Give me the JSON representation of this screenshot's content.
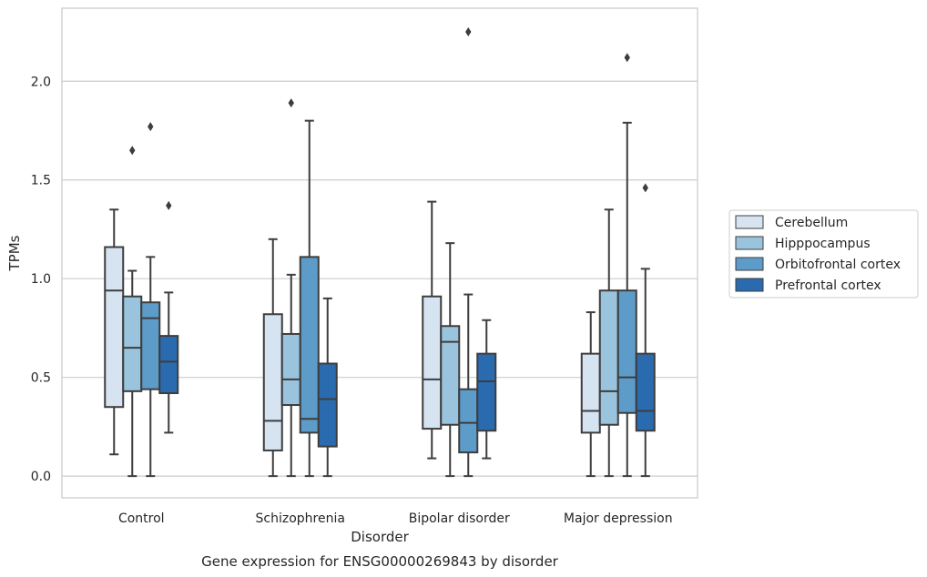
{
  "chart_data": {
    "type": "box",
    "title": "",
    "caption": "Gene expression for ENSG00000269843 by disorder",
    "xlabel": "Disorder",
    "ylabel": "TPMs",
    "ylim": [
      -0.11,
      2.37
    ],
    "yticks": [
      0.0,
      0.5,
      1.0,
      1.5,
      2.0
    ],
    "ytick_labels": [
      "0.0",
      "0.5",
      "1.0",
      "1.5",
      "2.0"
    ],
    "grid": "horizontal",
    "legend_position": "right",
    "categories": [
      "Control",
      "Schizophrenia",
      "Bipolar disorder",
      "Major depression"
    ],
    "series": [
      {
        "name": "Cerebellum",
        "color": "#d6e4f2",
        "boxes": [
          {
            "whislo": 0.11,
            "q1": 0.35,
            "med": 0.94,
            "q3": 1.16,
            "whishi": 1.35,
            "fliers": []
          },
          {
            "whislo": 0.0,
            "q1": 0.13,
            "med": 0.28,
            "q3": 0.82,
            "whishi": 1.2,
            "fliers": []
          },
          {
            "whislo": 0.09,
            "q1": 0.24,
            "med": 0.49,
            "q3": 0.91,
            "whishi": 1.39,
            "fliers": []
          },
          {
            "whislo": 0.0,
            "q1": 0.22,
            "med": 0.33,
            "q3": 0.62,
            "whishi": 0.83,
            "fliers": []
          }
        ]
      },
      {
        "name": "Hipppocampus",
        "color": "#9ac4dd",
        "boxes": [
          {
            "whislo": 0.0,
            "q1": 0.43,
            "med": 0.65,
            "q3": 0.91,
            "whishi": 1.04,
            "fliers": [
              1.65
            ]
          },
          {
            "whislo": 0.0,
            "q1": 0.36,
            "med": 0.49,
            "q3": 0.72,
            "whishi": 1.02,
            "fliers": [
              1.89
            ]
          },
          {
            "whislo": 0.0,
            "q1": 0.26,
            "med": 0.68,
            "q3": 0.76,
            "whishi": 1.18,
            "fliers": []
          },
          {
            "whislo": 0.0,
            "q1": 0.26,
            "med": 0.43,
            "q3": 0.94,
            "whishi": 1.35,
            "fliers": []
          }
        ]
      },
      {
        "name": "Orbitofrontal cortex",
        "color": "#5d9cc9",
        "boxes": [
          {
            "whislo": 0.0,
            "q1": 0.44,
            "med": 0.8,
            "q3": 0.88,
            "whishi": 1.11,
            "fliers": [
              1.77
            ]
          },
          {
            "whislo": 0.0,
            "q1": 0.22,
            "med": 0.29,
            "q3": 1.11,
            "whishi": 1.8,
            "fliers": []
          },
          {
            "whislo": 0.0,
            "q1": 0.12,
            "med": 0.27,
            "q3": 0.44,
            "whishi": 0.92,
            "fliers": [
              2.25
            ]
          },
          {
            "whislo": 0.0,
            "q1": 0.32,
            "med": 0.5,
            "q3": 0.94,
            "whishi": 1.79,
            "fliers": [
              2.12
            ]
          }
        ]
      },
      {
        "name": "Prefrontal cortex",
        "color": "#2a6bb0",
        "boxes": [
          {
            "whislo": 0.22,
            "q1": 0.42,
            "med": 0.58,
            "q3": 0.71,
            "whishi": 0.93,
            "fliers": [
              1.37
            ]
          },
          {
            "whislo": 0.0,
            "q1": 0.15,
            "med": 0.39,
            "q3": 0.57,
            "whishi": 0.9,
            "fliers": []
          },
          {
            "whislo": 0.09,
            "q1": 0.23,
            "med": 0.48,
            "q3": 0.62,
            "whishi": 0.79,
            "fliers": []
          },
          {
            "whislo": 0.0,
            "q1": 0.23,
            "med": 0.33,
            "q3": 0.62,
            "whishi": 1.05,
            "fliers": [
              1.46
            ]
          }
        ]
      }
    ]
  }
}
